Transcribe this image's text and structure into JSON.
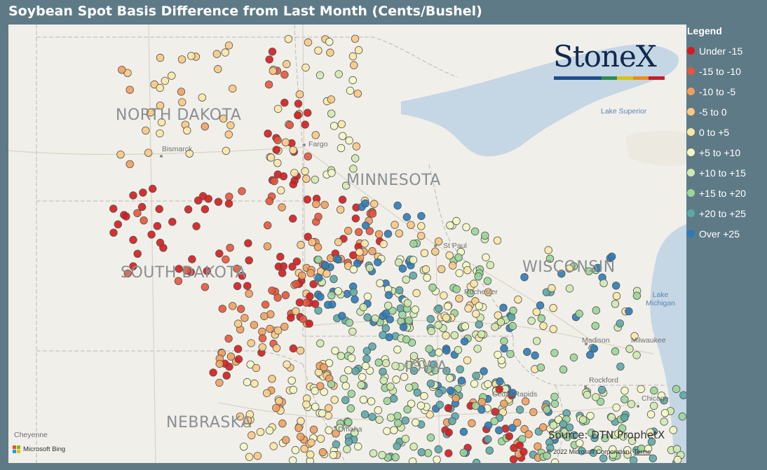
{
  "title": "Soybean Spot Basis Difference from Last Month (Cents/Bushel)",
  "legend": {
    "title": "Legend",
    "items": [
      {
        "label": "Under -15",
        "color": "#d7191c"
      },
      {
        "label": "-15 to -10",
        "color": "#e8553a"
      },
      {
        "label": "-10 to -5",
        "color": "#f39e5e"
      },
      {
        "label": "-5 to 0",
        "color": "#fbc882"
      },
      {
        "label": "0 to +5",
        "color": "#fde7a4"
      },
      {
        "label": "+5 to +10",
        "color": "#f4f7c4"
      },
      {
        "label": "+10 to +15",
        "color": "#cfeaae"
      },
      {
        "label": "+15 to +20",
        "color": "#9ad598"
      },
      {
        "label": "+20 to +25",
        "color": "#5ba9a9"
      },
      {
        "label": "Over +25",
        "color": "#2b7bba"
      }
    ]
  },
  "map": {
    "states": [
      "NORTH DAKOTA",
      "MINNESOTA",
      "SOUTH DAKOTA",
      "WISCONSIN",
      "NEBRASKA",
      "IOWA"
    ],
    "cities": [
      "Bismarck",
      "Fargo",
      "St Paul",
      "Rochester",
      "Madison",
      "Milwaukee",
      "Rockford",
      "Chicago",
      "Cedar Rapids",
      "Omaha",
      "Cheyenne"
    ],
    "lakes": [
      "Lake Superior",
      "Lake Michigan"
    ],
    "source": "Source: DTN ProphetX",
    "copyright": "© 2022 Microsoft Corporation",
    "terms": "Terms",
    "bing": "Microsoft Bing"
  },
  "logo": {
    "text": "StoneX",
    "tm": "™",
    "bar_colors": [
      "#1e4f8c",
      "#1e4f8c",
      "#1e4f8c",
      "#2e8b57",
      "#d4c21a",
      "#e88d1f",
      "#c0202b"
    ]
  }
}
